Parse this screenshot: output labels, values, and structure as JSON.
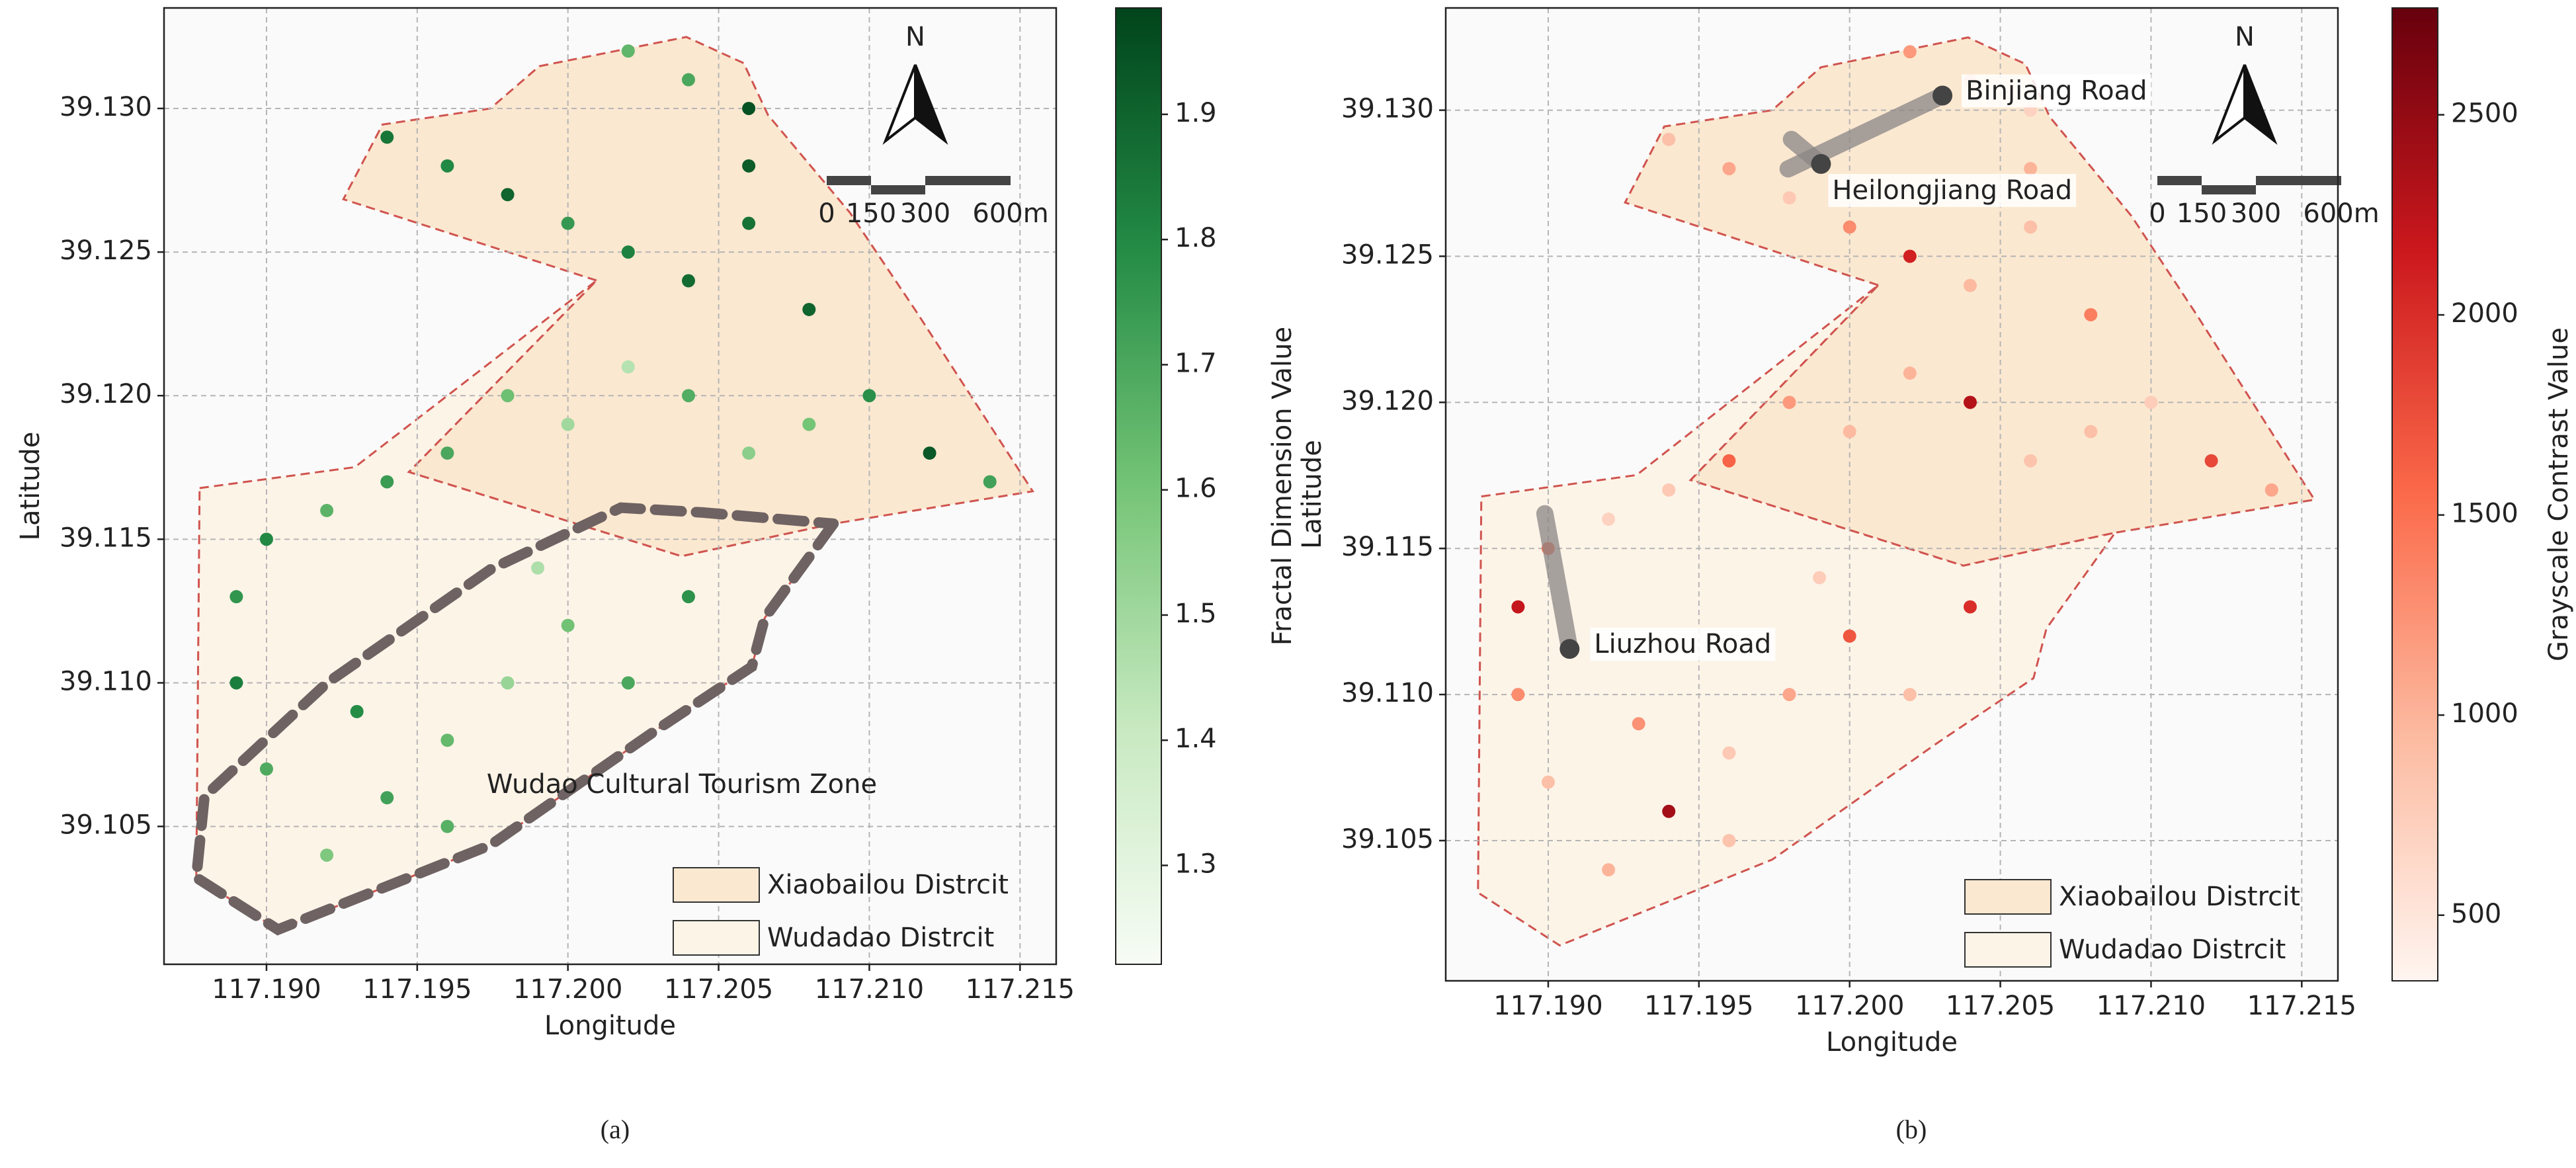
{
  "chart_data": [
    {
      "type": "scatter",
      "panel_label": "(a)",
      "xlabel": "Longitude",
      "ylabel": "Latitude",
      "xlim": [
        117.1866,
        117.2162
      ],
      "ylim": [
        39.1002,
        39.1335
      ],
      "xticks": [
        {
          "value": 117.19,
          "label": "117.190"
        },
        117.195,
        {
          "value": 117.2,
          "label": "117.200"
        },
        117.205,
        {
          "value": 117.21,
          "label": "117.210"
        },
        117.215
      ],
      "yticks": [
        {
          "value": 39.13,
          "label": "39.130"
        },
        39.125,
        {
          "value": 39.12,
          "label": "39.120"
        },
        39.115,
        {
          "value": 39.11,
          "label": "39.110"
        },
        39.105
      ],
      "grid": true,
      "x": [
        117.194,
        117.196,
        117.198,
        117.2,
        117.202,
        117.204,
        117.206,
        117.204,
        117.202,
        117.206,
        117.206,
        117.208,
        117.21,
        117.212,
        117.214,
        117.208,
        117.206,
        117.204,
        117.202,
        117.2,
        117.198,
        117.196,
        117.194,
        117.192,
        117.19,
        117.189,
        117.189,
        117.19,
        117.192,
        117.194,
        117.196,
        117.198,
        117.2,
        117.202,
        117.204,
        117.196,
        117.193,
        117.199
      ],
      "y": [
        39.129,
        39.128,
        39.127,
        39.126,
        39.125,
        39.124,
        39.13,
        39.131,
        39.132,
        39.128,
        39.126,
        39.123,
        39.12,
        39.118,
        39.117,
        39.119,
        39.118,
        39.12,
        39.121,
        39.119,
        39.12,
        39.118,
        39.117,
        39.116,
        39.115,
        39.113,
        39.11,
        39.107,
        39.104,
        39.106,
        39.108,
        39.11,
        39.112,
        39.11,
        39.113,
        39.105,
        39.109,
        39.114
      ],
      "values": [
        1.85,
        1.8,
        1.9,
        1.75,
        1.82,
        1.88,
        1.95,
        1.7,
        1.65,
        1.92,
        1.86,
        1.9,
        1.78,
        1.93,
        1.72,
        1.6,
        1.55,
        1.68,
        1.45,
        1.5,
        1.62,
        1.7,
        1.74,
        1.66,
        1.8,
        1.76,
        1.83,
        1.69,
        1.58,
        1.72,
        1.64,
        1.52,
        1.61,
        1.7,
        1.77,
        1.67,
        1.79,
        1.47
      ],
      "colormap": [
        "#f7fcf5",
        "#c7e9c0",
        "#74c476",
        "#238b45",
        "#00441b"
      ],
      "colorbar": {
        "label": "Fractal Dimension Value",
        "lim": [
          1.221,
          1.985
        ],
        "ticks": [
          1.3,
          1.4,
          1.5,
          1.6,
          1.7,
          1.8,
          1.9
        ]
      },
      "legend": "lower right",
      "districts": [
        {
          "name": "Xiaobailou Distrcit",
          "color": "#fbe8d0",
          "lon": [
            117.20095,
            117.19255,
            117.19385,
            117.19743,
            117.19905,
            117.20393,
            117.20583,
            117.20664,
            117.20935,
            117.21152,
            117.21542,
            117.20881,
            117.20377,
            117.19472
          ],
          "lat": [
            39.12401,
            39.12684,
            39.12944,
            39.13,
            39.13147,
            39.13249,
            39.13158,
            39.12977,
            39.12638,
            39.12299,
            39.11667,
            39.11554,
            39.11441,
            39.11734
          ]
        },
        {
          "name": "Wudadao Distrcit",
          "color": "#fdf4e8",
          "lon": [
            117.18778,
            117.19293,
            117.20095,
            117.19472,
            117.20377,
            117.20881,
            117.20653,
            117.2061,
            117.20285,
            117.19743,
            117.19038,
            117.18767
          ],
          "lat": [
            39.11678,
            39.11751,
            39.12401,
            39.11734,
            39.11441,
            39.11554,
            39.11226,
            39.11056,
            39.1083,
            39.10435,
            39.10141,
            39.10322
          ]
        }
      ],
      "zone": {
        "label": "Wudao Cultural Tourism Zone",
        "color": "#6e6262",
        "lon": [
          117.20881,
          117.20653,
          117.2061,
          117.20285,
          117.19743,
          117.19038,
          117.18767,
          117.18794,
          117.19201,
          117.19743,
          117.20176,
          117.20447,
          117.20881
        ],
        "lat": [
          39.11554,
          39.11226,
          39.11056,
          39.1083,
          39.10435,
          39.10141,
          39.10322,
          39.10604,
          39.11,
          39.11395,
          39.1161,
          39.11593,
          39.11554
        ]
      },
      "north": "N",
      "scale_bar": [
        "0",
        "150",
        "300",
        "600m"
      ]
    },
    {
      "type": "scatter",
      "panel_label": "(b)",
      "xlabel": "Longitude",
      "ylabel": "Latitude",
      "xlim": [
        117.1866,
        117.2162
      ],
      "ylim": [
        39.1002,
        39.1335
      ],
      "xticks": [
        {
          "value": 117.19,
          "label": "117.190"
        },
        117.195,
        {
          "value": 117.2,
          "label": "117.200"
        },
        117.205,
        {
          "value": 117.21,
          "label": "117.210"
        },
        117.215
      ],
      "yticks": [
        {
          "value": 39.13,
          "label": "39.130"
        },
        39.125,
        {
          "value": 39.12,
          "label": "39.120"
        },
        39.115,
        {
          "value": 39.11,
          "label": "39.110"
        },
        39.105
      ],
      "grid": true,
      "x": [
        117.194,
        117.196,
        117.198,
        117.2,
        117.202,
        117.204,
        117.206,
        117.204,
        117.202,
        117.206,
        117.206,
        117.208,
        117.21,
        117.212,
        117.214,
        117.208,
        117.206,
        117.204,
        117.202,
        117.2,
        117.198,
        117.196,
        117.194,
        117.192,
        117.19,
        117.189,
        117.189,
        117.19,
        117.192,
        117.194,
        117.196,
        117.198,
        117.2,
        117.202,
        117.204,
        117.196,
        117.193,
        117.199
      ],
      "y": [
        39.129,
        39.128,
        39.127,
        39.126,
        39.125,
        39.124,
        39.13,
        39.131,
        39.132,
        39.128,
        39.126,
        39.123,
        39.12,
        39.118,
        39.117,
        39.119,
        39.118,
        39.12,
        39.121,
        39.119,
        39.12,
        39.118,
        39.117,
        39.116,
        39.115,
        39.113,
        39.11,
        39.107,
        39.104,
        39.106,
        39.108,
        39.11,
        39.112,
        39.11,
        39.113,
        39.105,
        39.109,
        39.114
      ],
      "values": [
        900,
        1100,
        800,
        1300,
        2100,
        950,
        700,
        850,
        1200,
        1000,
        900,
        1400,
        750,
        1800,
        1100,
        900,
        850,
        2300,
        1000,
        950,
        1200,
        1600,
        800,
        700,
        1500,
        2200,
        1300,
        900,
        1000,
        2400,
        800,
        1100,
        1700,
        900,
        2000,
        850,
        1250,
        750
      ],
      "colormap": [
        "#fff5f0",
        "#fcbba1",
        "#fb6a4a",
        "#cb181d",
        "#67000d"
      ],
      "colorbar": {
        "label": "Grayscale Contrast Value",
        "lim": [
          336,
          2767
        ],
        "ticks": [
          500,
          1000,
          1500,
          2000,
          2500
        ]
      },
      "legend": "lower right",
      "districts": [
        {
          "name": "Xiaobailou Distrcit",
          "color": "#fbe8d0",
          "lon": [
            117.20095,
            117.19255,
            117.19385,
            117.19743,
            117.19905,
            117.20393,
            117.20583,
            117.20664,
            117.20935,
            117.21152,
            117.21542,
            117.20881,
            117.20377,
            117.19472
          ],
          "lat": [
            39.12401,
            39.12684,
            39.12944,
            39.13,
            39.13147,
            39.13249,
            39.13158,
            39.12977,
            39.12638,
            39.12299,
            39.11667,
            39.11554,
            39.11441,
            39.11734
          ]
        },
        {
          "name": "Wudadao Distrcit",
          "color": "#fdf4e8",
          "lon": [
            117.18778,
            117.19293,
            117.20095,
            117.19472,
            117.20377,
            117.20881,
            117.20653,
            117.2061,
            117.20285,
            117.19743,
            117.19038,
            117.18767
          ],
          "lat": [
            39.11678,
            39.11751,
            39.12401,
            39.11734,
            39.11441,
            39.11554,
            39.11226,
            39.11056,
            39.1083,
            39.10435,
            39.10141,
            39.10322
          ]
        }
      ],
      "roads": [
        {
          "name": "Binjiang Road",
          "lon": [
            117.19796,
            117.20308
          ],
          "lat": [
            39.12799,
            39.1305
          ]
        },
        {
          "name": "Heilongjiang Road",
          "lon": [
            117.19807,
            117.19905
          ],
          "lat": [
            39.129,
            39.12816
          ]
        },
        {
          "name": "Liuzhou Road",
          "lon": [
            117.18989,
            117.19071
          ],
          "lat": [
            39.11619,
            39.11156
          ]
        }
      ],
      "north": "N",
      "scale_bar": [
        "0",
        "150",
        "300",
        "600m"
      ]
    }
  ]
}
